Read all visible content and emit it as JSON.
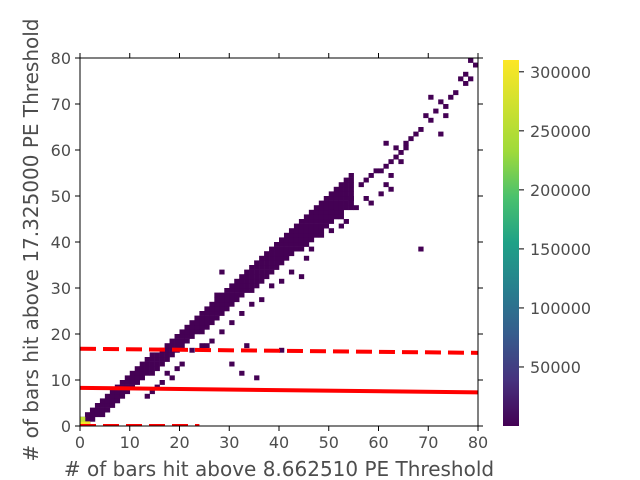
{
  "chart_data": {
    "type": "heatmap",
    "title": "",
    "xlabel": "# of bars hit above 8.662510 PE Threshold",
    "ylabel": "# of bars hit above 17.325000 PE Threshold",
    "xlim": [
      0,
      80
    ],
    "ylim": [
      0,
      80
    ],
    "xticks": [
      0,
      10,
      20,
      30,
      40,
      50,
      60,
      70,
      80
    ],
    "yticks": [
      0,
      10,
      20,
      30,
      40,
      50,
      60,
      70,
      80
    ],
    "grid": false,
    "colormap": "viridis",
    "colorbar": {
      "min": 0,
      "max": 310000,
      "ticks": [
        50000,
        100000,
        150000,
        200000,
        250000,
        300000
      ]
    },
    "band": {
      "description": "dense diagonal band of nonzero bins (low counts)",
      "x_start": 0,
      "x_end": 55,
      "y_at_x0": 0,
      "y_at_x55": 52,
      "color": "#440154"
    },
    "peak_bins": [
      {
        "x": 0,
        "y": 0,
        "count": 305000
      },
      {
        "x": 1,
        "y": 0,
        "count": 300000
      },
      {
        "x": 0,
        "y": 1,
        "count": 260000
      }
    ],
    "sparse_bins": [
      [
        56,
        52
      ],
      [
        57,
        53
      ],
      [
        58,
        54
      ],
      [
        59,
        55
      ],
      [
        60,
        55
      ],
      [
        61,
        56
      ],
      [
        62,
        57
      ],
      [
        60,
        50
      ],
      [
        61,
        52
      ],
      [
        62,
        51
      ],
      [
        63,
        58
      ],
      [
        64,
        59
      ],
      [
        65,
        60
      ],
      [
        64,
        57
      ],
      [
        66,
        62
      ],
      [
        65,
        61
      ],
      [
        67,
        63
      ],
      [
        68,
        64
      ],
      [
        69,
        67
      ],
      [
        70,
        66
      ],
      [
        71,
        68
      ],
      [
        72,
        70
      ],
      [
        73,
        69
      ],
      [
        74,
        71
      ],
      [
        75,
        72
      ],
      [
        76,
        75
      ],
      [
        77,
        76
      ],
      [
        78,
        79
      ],
      [
        79,
        78
      ],
      [
        78,
        75
      ],
      [
        77,
        74
      ],
      [
        73,
        67
      ],
      [
        72,
        63
      ],
      [
        70,
        71
      ],
      [
        62,
        54
      ],
      [
        61,
        61
      ],
      [
        63,
        60
      ],
      [
        58,
        48
      ],
      [
        57,
        49
      ],
      [
        55,
        47
      ],
      [
        54,
        49
      ],
      [
        53,
        44
      ],
      [
        52,
        45
      ],
      [
        50,
        42
      ],
      [
        48,
        41
      ],
      [
        46,
        38
      ],
      [
        45,
        36
      ],
      [
        42,
        33
      ],
      [
        40,
        31
      ],
      [
        38,
        30
      ],
      [
        36,
        27
      ],
      [
        34,
        26
      ],
      [
        32,
        24
      ],
      [
        30,
        22
      ],
      [
        28,
        20
      ],
      [
        26,
        18
      ],
      [
        25,
        17
      ],
      [
        24,
        17
      ],
      [
        22,
        16
      ],
      [
        20,
        13
      ],
      [
        19,
        12
      ],
      [
        18,
        10
      ],
      [
        17,
        11
      ],
      [
        16,
        9
      ],
      [
        15,
        8
      ],
      [
        14,
        7
      ],
      [
        13,
        6
      ],
      [
        68,
        38
      ],
      [
        50,
        46
      ],
      [
        52,
        43
      ],
      [
        30,
        13
      ],
      [
        32,
        11
      ],
      [
        35,
        10
      ],
      [
        40,
        16
      ],
      [
        44,
        32
      ],
      [
        28,
        33
      ],
      [
        27,
        28
      ],
      [
        33,
        17
      ]
    ],
    "lines": [
      {
        "style": "solid",
        "color": "#ff0000",
        "x": [
          0,
          80
        ],
        "y": [
          8.3,
          7.3
        ]
      },
      {
        "style": "dashed",
        "color": "#ff0000",
        "x": [
          0,
          80
        ],
        "y": [
          16.8,
          15.9
        ]
      },
      {
        "style": "dashed",
        "color": "#ff0000",
        "x": [
          0,
          24
        ],
        "y": [
          0,
          0
        ]
      }
    ]
  }
}
